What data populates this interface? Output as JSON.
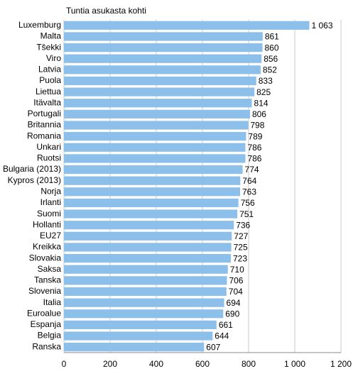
{
  "chart_data": {
    "type": "hbar",
    "title": "Tuntia asukasta kohti",
    "categories": [
      "Luxemburg",
      "Malta",
      "Tšekki",
      "Viro",
      "Latvia",
      "Puola",
      "Liettua",
      "Itävalta",
      "Portugali",
      "Britannia",
      "Romania",
      "Unkari",
      "Ruotsi",
      "Bulgaria (2013)",
      "Kypros (2013)",
      "Norja",
      "Irlanti",
      "Suomi",
      "Hollanti",
      "EU27",
      "Kreikka",
      "Slovakia",
      "Saksa",
      "Tanska",
      "Slovenia",
      "Italia",
      "Euroalue",
      "Espanja",
      "Belgia",
      "Ranska"
    ],
    "values": [
      1063,
      861,
      860,
      856,
      852,
      833,
      825,
      814,
      806,
      798,
      789,
      786,
      786,
      774,
      764,
      763,
      756,
      751,
      736,
      727,
      725,
      723,
      710,
      706,
      704,
      694,
      690,
      661,
      644,
      607
    ],
    "value_labels": [
      "1 063",
      "861",
      "860",
      "856",
      "852",
      "833",
      "825",
      "814",
      "806",
      "798",
      "789",
      "786",
      "786",
      "774",
      "764",
      "763",
      "756",
      "751",
      "736",
      "727",
      "725",
      "723",
      "710",
      "706",
      "704",
      "694",
      "690",
      "661",
      "644",
      "607"
    ],
    "color": "#8cbfea",
    "xlim": [
      0,
      1200
    ],
    "xticks": [
      0,
      200,
      400,
      600,
      800,
      {
        "value": 1000,
        "label": "1 000"
      },
      {
        "value": 1200,
        "label": "1 200"
      }
    ],
    "grid": true
  }
}
